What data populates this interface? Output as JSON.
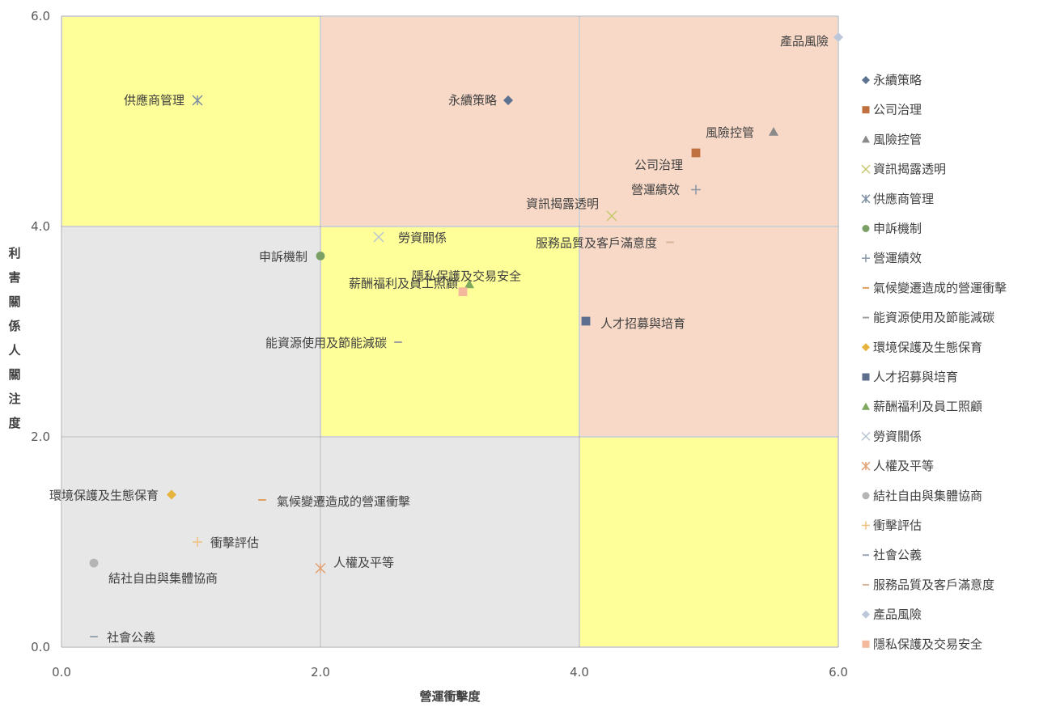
{
  "chart_data": {
    "type": "scatter",
    "xlabel": "營運衝擊度",
    "ylabel": "利害關係人關注度",
    "xlim": [
      0,
      6
    ],
    "ylim": [
      0,
      6
    ],
    "x_ticks": [
      "0.0",
      "2.0",
      "4.0",
      "6.0"
    ],
    "y_ticks": [
      "0.0",
      "2.0",
      "4.0",
      "6.0"
    ],
    "grid": true,
    "legend_position": "right",
    "quadrant_colors": {
      "yellow": "#ffff99",
      "peach": "#f8d9c7",
      "gray": "#e7e7e7"
    },
    "series": [
      {
        "name": "永續策略",
        "x": 3.45,
        "y": 5.2,
        "marker": "diamond",
        "color": "#5b7391"
      },
      {
        "name": "公司治理",
        "x": 4.9,
        "y": 4.7,
        "marker": "square",
        "color": "#c0703e"
      },
      {
        "name": "風險控管",
        "x": 5.5,
        "y": 4.9,
        "marker": "triangle",
        "color": "#8a8a8a"
      },
      {
        "name": "資訊揭露透明",
        "x": 4.25,
        "y": 4.1,
        "marker": "x",
        "color": "#c5c86b"
      },
      {
        "name": "供應商管理",
        "x": 1.05,
        "y": 5.2,
        "marker": "star",
        "color": "#7d8fa3"
      },
      {
        "name": "申訴機制",
        "x": 2.0,
        "y": 3.72,
        "marker": "circle",
        "color": "#7aa065"
      },
      {
        "name": "營運績效",
        "x": 4.9,
        "y": 4.35,
        "marker": "plus",
        "color": "#8a96a6"
      },
      {
        "name": "氣候變遷造成的營運衝擊",
        "x": 1.55,
        "y": 1.4,
        "marker": "dash",
        "color": "#e0a060"
      },
      {
        "name": "能資源使用及節能減碳",
        "x": 2.6,
        "y": 2.9,
        "marker": "dash",
        "color": "#a0a0a0"
      },
      {
        "name": "環境保護及生態保育",
        "x": 0.85,
        "y": 1.45,
        "marker": "diamond",
        "color": "#e6b33d"
      },
      {
        "name": "人才招募與培育",
        "x": 4.05,
        "y": 3.1,
        "marker": "square",
        "color": "#5d6e8e"
      },
      {
        "name": "薪酬福利及員工照顧",
        "x": 3.15,
        "y": 3.45,
        "marker": "triangle",
        "color": "#7ea85e"
      },
      {
        "name": "勞資關係",
        "x": 2.45,
        "y": 3.9,
        "marker": "x",
        "color": "#b8c4d4"
      },
      {
        "name": "人權及平等",
        "x": 2.0,
        "y": 0.75,
        "marker": "star",
        "color": "#e0a070"
      },
      {
        "name": "結社自由與集體協商",
        "x": 0.25,
        "y": 0.8,
        "marker": "circle",
        "color": "#b5b5b5"
      },
      {
        "name": "衝擊評估",
        "x": 1.05,
        "y": 1.0,
        "marker": "plus",
        "color": "#f0c080"
      },
      {
        "name": "社會公義",
        "x": 0.25,
        "y": 0.1,
        "marker": "dash",
        "color": "#9aa6b4"
      },
      {
        "name": "服務品質及客戶滿意度",
        "x": 4.7,
        "y": 3.85,
        "marker": "dash",
        "color": "#d6b49a"
      },
      {
        "name": "產品風險",
        "x": 6.0,
        "y": 5.8,
        "marker": "diamond",
        "color": "#bcc8da"
      },
      {
        "name": "隱私保護及交易安全",
        "x": 3.1,
        "y": 3.38,
        "marker": "square",
        "color": "#f4b89c"
      }
    ],
    "annotations": [
      {
        "text": "產品風險",
        "series": "產品風險"
      },
      {
        "text": "供應商管理",
        "series": "供應商管理"
      },
      {
        "text": "永續策略",
        "series": "永續策略"
      },
      {
        "text": "風險控管",
        "series": "風險控管"
      },
      {
        "text": "公司治理",
        "series": "公司治理"
      },
      {
        "text": "營運績效",
        "series": "營運績效"
      },
      {
        "text": "資訊揭露透明",
        "series": "資訊揭露透明"
      },
      {
        "text": "勞資關係",
        "series": "勞資關係"
      },
      {
        "text": "服務品質及客戶滿意度",
        "series": "服務品質及客戶滿意度"
      },
      {
        "text": "申訴機制",
        "series": "申訴機制"
      },
      {
        "text": "隱私保護及交易安全",
        "series": "隱私保護及交易安全"
      },
      {
        "text": "薪酬福利及員工照顧",
        "series": "薪酬福利及員工照顧"
      },
      {
        "text": "人才招募與培育",
        "series": "人才招募與培育"
      },
      {
        "text": "能資源使用及節能減碳",
        "series": "能資源使用及節能減碳"
      },
      {
        "text": "環境保護及生態保育",
        "series": "環境保護及生態保育"
      },
      {
        "text": "氣候變遷造成的營運衝擊",
        "series": "氣候變遷造成的營運衝擊"
      },
      {
        "text": "衝擊評估",
        "series": "衝擊評估"
      },
      {
        "text": "人權及平等",
        "series": "人權及平等"
      },
      {
        "text": "結社自由與集體協商",
        "series": "結社自由與集體協商"
      },
      {
        "text": "社會公義",
        "series": "社會公義"
      }
    ]
  }
}
